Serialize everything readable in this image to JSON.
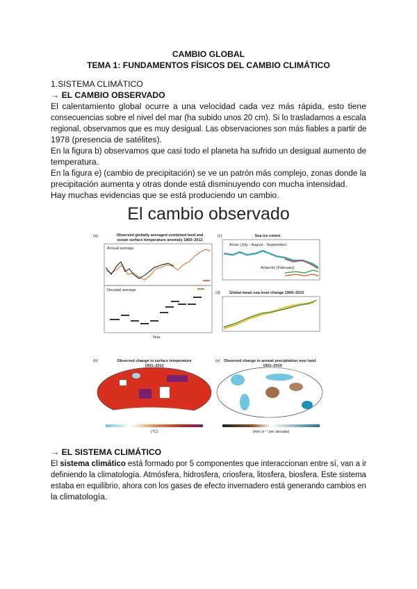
{
  "header": {
    "title": "CAMBIO GLOBAL",
    "subtitle": "TEMA 1: FUNDAMENTOS FÍSICOS DEL CAMBIO CLIMÁTICO"
  },
  "section1": {
    "number_title": "1.SISTEMA CLIMÁTICO",
    "heading": "→ EL CAMBIO OBSERVADO",
    "lines": [
      "El calentamiento global ocurre a una velocidad cada vez más rápida, esto tiene",
      "consecuencias sobre el nivel del mar (ha subido unos 20 cm). Si lo trasladamos a escala",
      "regional, observamos que es muy desigual. Las observaciones son más fiables a partir de",
      "1978 (presencia de satélites).",
      "En la figura b) observamos que casi todo el planeta ha sufrido un desigual aumento de",
      "temperatura.",
      "En la figura e) (cambio de precipitación) se ve un patrón más complejo, zonas donde la",
      "precipitación aumenta y otras donde está disminuyendo con mucha intensidad.",
      "Hay muchas evidencias que se está produciendo un cambio."
    ]
  },
  "figure": {
    "title": "El cambio observado",
    "panel_a": {
      "label": "(a)",
      "title1": "Observed globally averaged combined land and",
      "title2": "ocean surface temperature anomaly 1850–2012",
      "sub1": "Annual average",
      "sub2": "Decadal average",
      "xlabel": "Year"
    },
    "panel_c": {
      "label": "(c)",
      "title": "Sea ice extent",
      "arctic": "Arctic (July - August - September)",
      "antarctic": "Antarctic (February)"
    },
    "panel_d": {
      "label": "(d)",
      "title": "Global mean sea level change 1900–2010"
    },
    "panel_b": {
      "label": "(b)",
      "title1": "Observed change in surface temperature",
      "title2": "1901–2012",
      "unit": "(°C)"
    },
    "panel_e": {
      "label": "(e)",
      "title1": "Observed change in annual precipitation over land",
      "title2": "1951–2010",
      "unit": "(mm yr⁻¹ per decade)"
    },
    "colors": {
      "warm": "#d7301f",
      "hot": "#7a1f6e",
      "cool": "#6ec6e0",
      "wet": "#1f8fb8",
      "dry": "#8c4a1f"
    }
  },
  "section2": {
    "heading": "→ EL SISTEMA CLIMÁTICO",
    "line1_pre": "El ",
    "line1_bold": "sistema climático",
    "line1_post": " está formado por 5 componentes que interaccionan entre sí, van a ir",
    "lines": [
      "definiendo la climatología. Atmósfera, hidrosfera, criosfera, litosfera, biosfera. Este sistema",
      "estaba en equilibrio, ahora con los gases de efecto invernadero está generando cambios en",
      "la climatología."
    ]
  }
}
